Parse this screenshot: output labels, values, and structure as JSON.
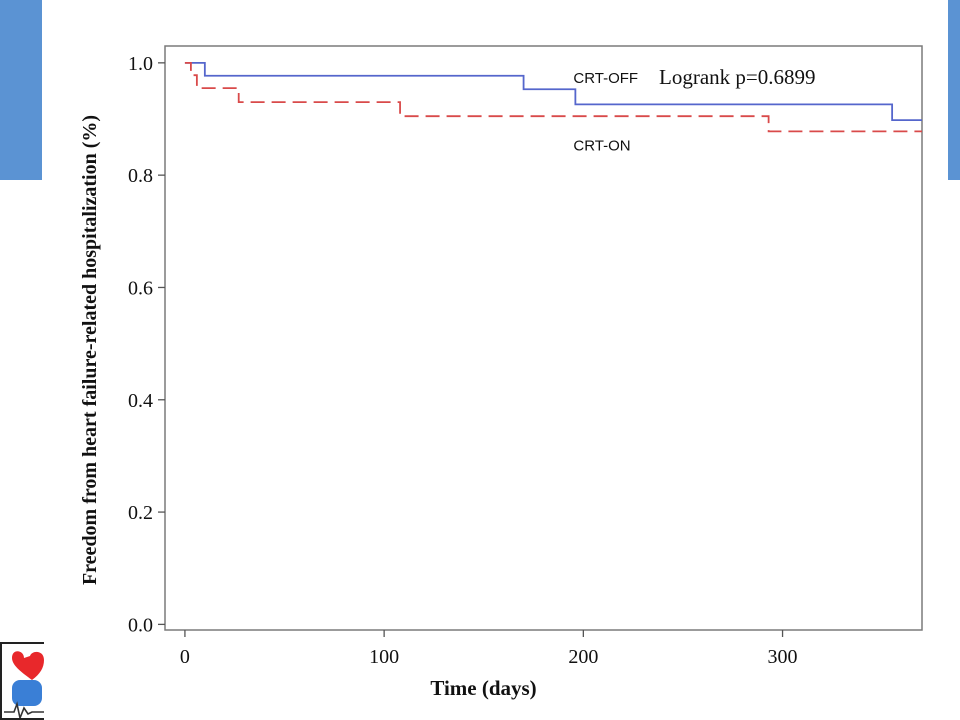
{
  "colors": {
    "slide_accent": "#5b93d3",
    "crt_off": "#5566cc",
    "crt_on": "#d94a4a",
    "logo_red": "#e8282b",
    "logo_blue": "#3a7fd6"
  },
  "logo": {
    "icon": "heart-ecg-logo-icon"
  },
  "chart_data": {
    "type": "line",
    "title": "",
    "xlabel": "Time (days)",
    "ylabel": "Freedom from heart failure-related hospitalization (%)",
    "xlim": [
      -10,
      370
    ],
    "ylim": [
      -0.01,
      1.03
    ],
    "x_ticks": [
      0,
      100,
      200,
      300
    ],
    "x_tick_labels": [
      "0",
      "100",
      "200",
      "300"
    ],
    "y_ticks": [
      0.0,
      0.2,
      0.4,
      0.6,
      0.8,
      1.0
    ],
    "y_tick_labels": [
      "0.0",
      "0.2",
      "0.4",
      "0.6",
      "0.8",
      "1.0"
    ],
    "grid": false,
    "step": true,
    "annotation": "Logrank p=0.6899",
    "series": [
      {
        "name": "CRT-OFF",
        "line_style": "solid",
        "color": "#5566cc",
        "x": [
          0,
          10,
          170,
          196,
          355,
          370
        ],
        "y": [
          1.0,
          0.977,
          0.953,
          0.926,
          0.898,
          0.898
        ]
      },
      {
        "name": "CRT-ON",
        "line_style": "dashed",
        "color": "#d94a4a",
        "x": [
          0,
          3,
          6,
          27,
          108,
          293,
          370
        ],
        "y": [
          1.0,
          0.978,
          0.955,
          0.93,
          0.905,
          0.878,
          0.878
        ]
      }
    ]
  }
}
